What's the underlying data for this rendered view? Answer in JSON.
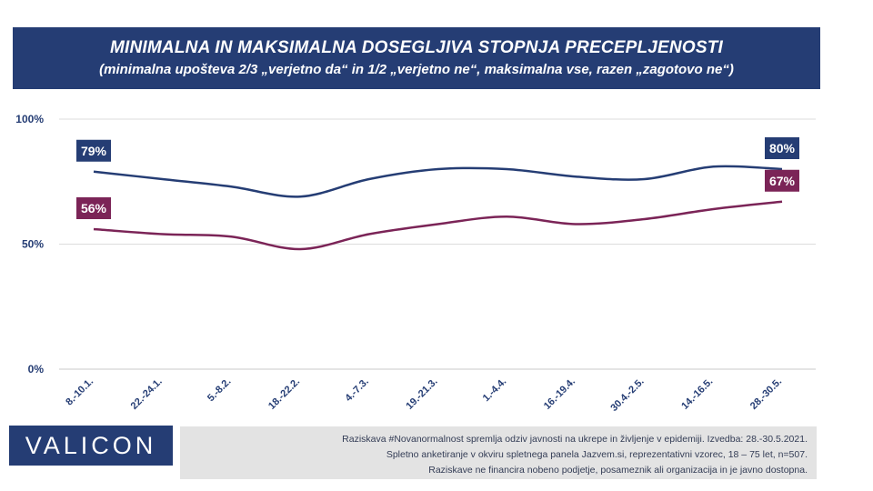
{
  "header": {
    "title": "MINIMALNA IN MAKSIMALNA DOSEGLJIVA STOPNJA PRECEPLJENOSTI",
    "subtitle": "(minimalna upošteva 2/3 „verjetno da“ in 1/2 „verjetno ne“, maksimalna vse, razen „zagotovo ne“)"
  },
  "chart_data": {
    "type": "line",
    "categories": [
      "8.-10.1.",
      "22.-24.1.",
      "5.-8.2.",
      "18.-22.2.",
      "4.-7.3.",
      "19.-21.3.",
      "1.-4.4.",
      "16.-19.4.",
      "30.4.-2.5.",
      "14.-16.5.",
      "28.-30.5."
    ],
    "series": [
      {
        "values": [
          79,
          76,
          73,
          69,
          76,
          80,
          80,
          77,
          76,
          81,
          80
        ],
        "color": "#253d74"
      },
      {
        "values": [
          56,
          54,
          53,
          48,
          54,
          58,
          61,
          58,
          60,
          64,
          67
        ],
        "color": "#7b2457"
      }
    ],
    "labels": [
      {
        "text": "79%",
        "series": 0,
        "point": 0
      },
      {
        "text": "80%",
        "series": 0,
        "point": 10
      },
      {
        "text": "56%",
        "series": 1,
        "point": 0
      },
      {
        "text": "67%",
        "series": 1,
        "point": 10
      }
    ],
    "yticks": [
      {
        "value": 100,
        "label": "100%"
      },
      {
        "value": 50,
        "label": "50%"
      },
      {
        "value": 0,
        "label": "0%"
      }
    ],
    "ylim": [
      0,
      100
    ],
    "grid": true
  },
  "brand": {
    "logo_text": "VALICON",
    "color": "#253d74"
  },
  "footer": {
    "line1": "Raziskava #Novanormalnost spremlja odziv javnosti na ukrepe in življenje v epidemiji. Izvedba: 28.-30.5.2021.",
    "line2": "Spletno anketiranje v okviru spletnega panela Jazvem.si, reprezentativni vzorec, 18 – 75 let, n=507.",
    "line3": "Raziskave ne financira nobeno podjetje, posameznik ali organizacija in je javno dostopna."
  }
}
